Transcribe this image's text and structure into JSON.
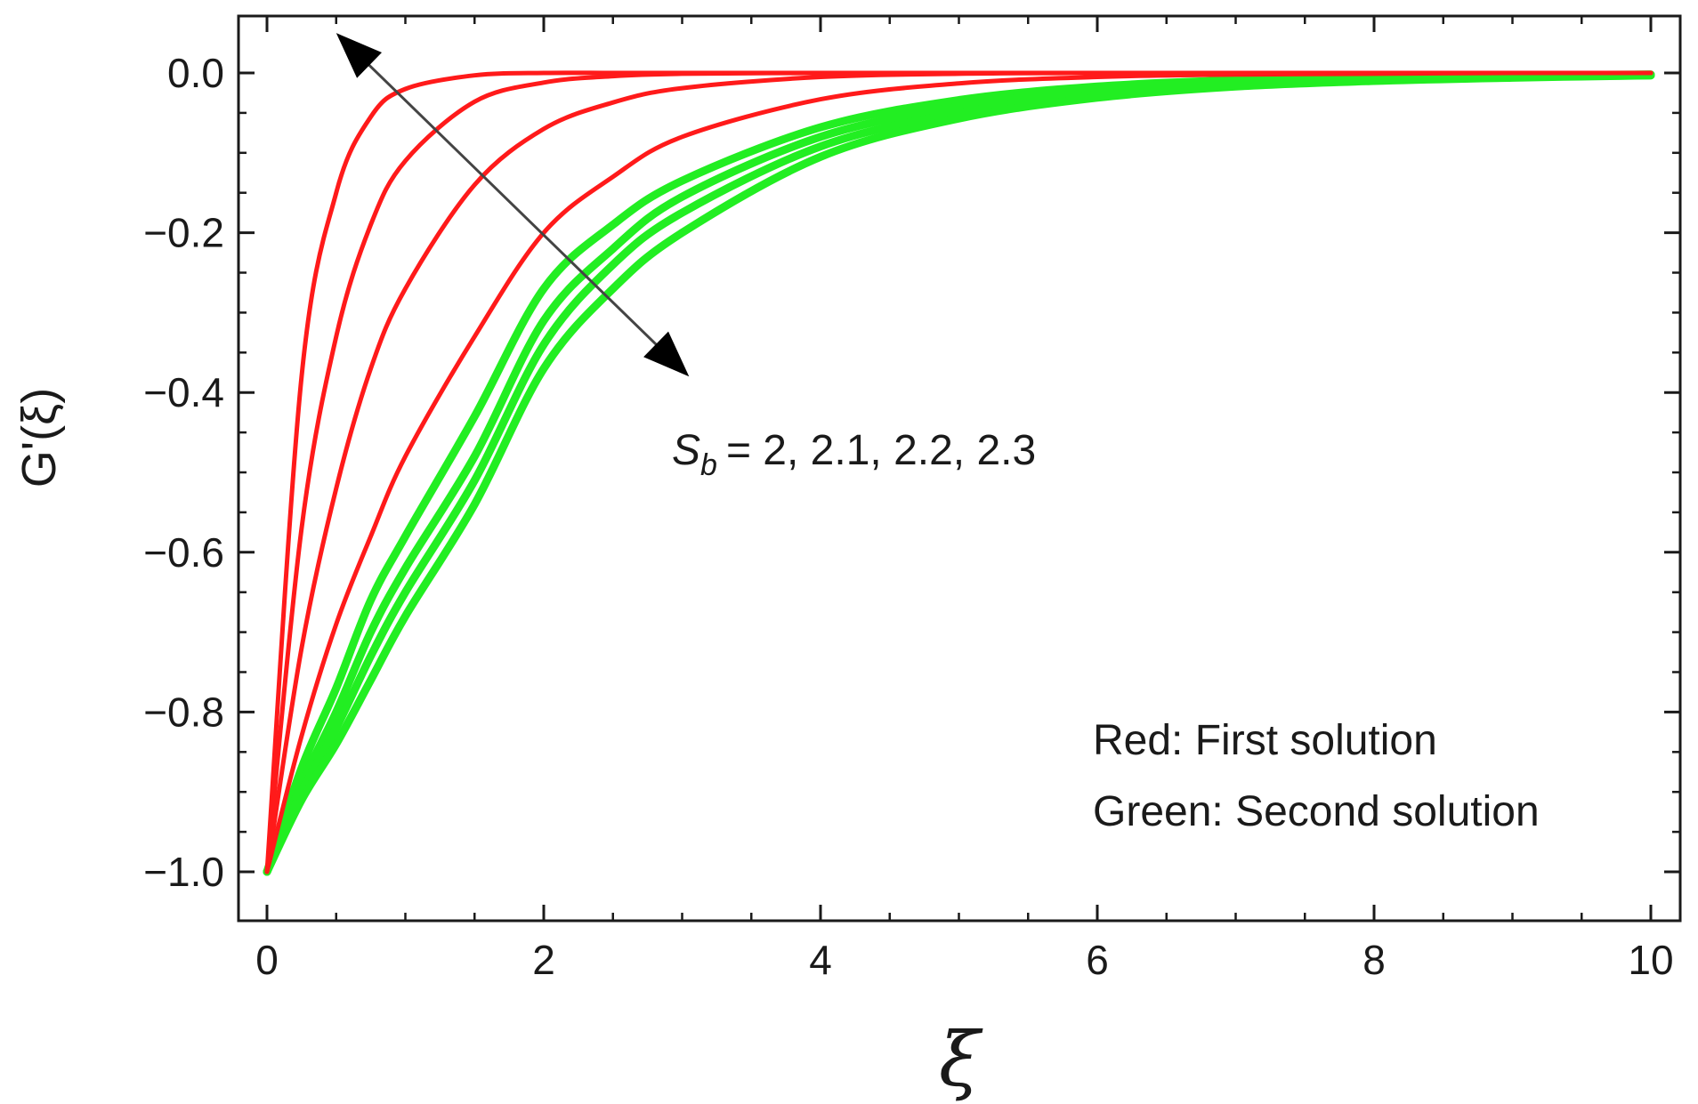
{
  "chart_data": {
    "type": "line",
    "xlabel": "ξ",
    "ylabel": "G'(ξ)",
    "xlim": [
      0,
      10
    ],
    "ylim": [
      -1.05,
      0.05
    ],
    "x_ticks": [
      "0",
      "2",
      "4",
      "6",
      "8",
      "10"
    ],
    "y_ticks": [
      "0.0",
      "−0.2",
      "−0.4",
      "−0.6",
      "−0.8",
      "−1.0"
    ],
    "x_tick_values": [
      0,
      2,
      4,
      6,
      8,
      10
    ],
    "y_tick_values": [
      0,
      -0.2,
      -0.4,
      -0.6,
      -0.8,
      -1.0
    ],
    "grid": false,
    "x": [
      0,
      0.25,
      0.5,
      0.75,
      1,
      1.5,
      2,
      2.5,
      3,
      4,
      5,
      6,
      7,
      8,
      9,
      10
    ],
    "series": [
      {
        "color": "#ff1a1a",
        "group": "first",
        "values": [
          -1.0,
          -0.38,
          -0.15,
          -0.055,
          -0.02,
          -0.003,
          0.0,
          0.0,
          0.0,
          0.0,
          0.0,
          0.0,
          0.0,
          0.0,
          0.0,
          0.0
        ]
      },
      {
        "color": "#ff1a1a",
        "group": "first",
        "values": [
          -1.0,
          -0.57,
          -0.33,
          -0.19,
          -0.11,
          -0.036,
          -0.012,
          -0.004,
          -0.001,
          0.0,
          0.0,
          0.0,
          0.0,
          0.0,
          0.0,
          0.0
        ]
      },
      {
        "color": "#ff1a1a",
        "group": "first",
        "values": [
          -1.0,
          -0.72,
          -0.52,
          -0.37,
          -0.27,
          -0.14,
          -0.07,
          -0.037,
          -0.019,
          -0.005,
          -0.001,
          0.0,
          0.0,
          0.0,
          0.0,
          0.0
        ]
      },
      {
        "color": "#ff1a1a",
        "group": "first",
        "values": [
          -1.0,
          -0.83,
          -0.69,
          -0.58,
          -0.48,
          -0.33,
          -0.2,
          -0.13,
          -0.08,
          -0.033,
          -0.013,
          -0.005,
          -0.002,
          -0.001,
          0.0,
          0.0
        ]
      },
      {
        "color": "#22ee22",
        "group": "second",
        "values": [
          -1.0,
          -0.87,
          -0.77,
          -0.66,
          -0.58,
          -0.43,
          -0.27,
          -0.19,
          -0.135,
          -0.068,
          -0.034,
          -0.017,
          -0.009,
          -0.005,
          -0.003,
          -0.002
        ]
      },
      {
        "color": "#22ee22",
        "group": "second",
        "values": [
          -1.0,
          -0.89,
          -0.8,
          -0.7,
          -0.62,
          -0.48,
          -0.31,
          -0.22,
          -0.155,
          -0.08,
          -0.042,
          -0.022,
          -0.012,
          -0.006,
          -0.004,
          -0.002
        ]
      },
      {
        "color": "#22ee22",
        "group": "second",
        "values": [
          -1.0,
          -0.9,
          -0.82,
          -0.73,
          -0.65,
          -0.51,
          -0.34,
          -0.24,
          -0.175,
          -0.092,
          -0.05,
          -0.027,
          -0.015,
          -0.008,
          -0.005,
          -0.003
        ]
      },
      {
        "color": "#22ee22",
        "group": "second",
        "values": [
          -1.0,
          -0.91,
          -0.84,
          -0.76,
          -0.68,
          -0.54,
          -0.37,
          -0.27,
          -0.2,
          -0.105,
          -0.057,
          -0.031,
          -0.017,
          -0.01,
          -0.006,
          -0.003
        ]
      }
    ],
    "annotations": {
      "parameter_label": "= 2, 2.1, 2.2, 2.3",
      "parameter_symbol": "S",
      "parameter_subscript": "b",
      "red_note": "Red: First solution",
      "green_note": "Green: Second solution"
    },
    "arrow": {
      "from": [
        0.5,
        0.05
      ],
      "to": [
        3.05,
        -0.38
      ],
      "color": "#444444",
      "direction": "both"
    }
  }
}
